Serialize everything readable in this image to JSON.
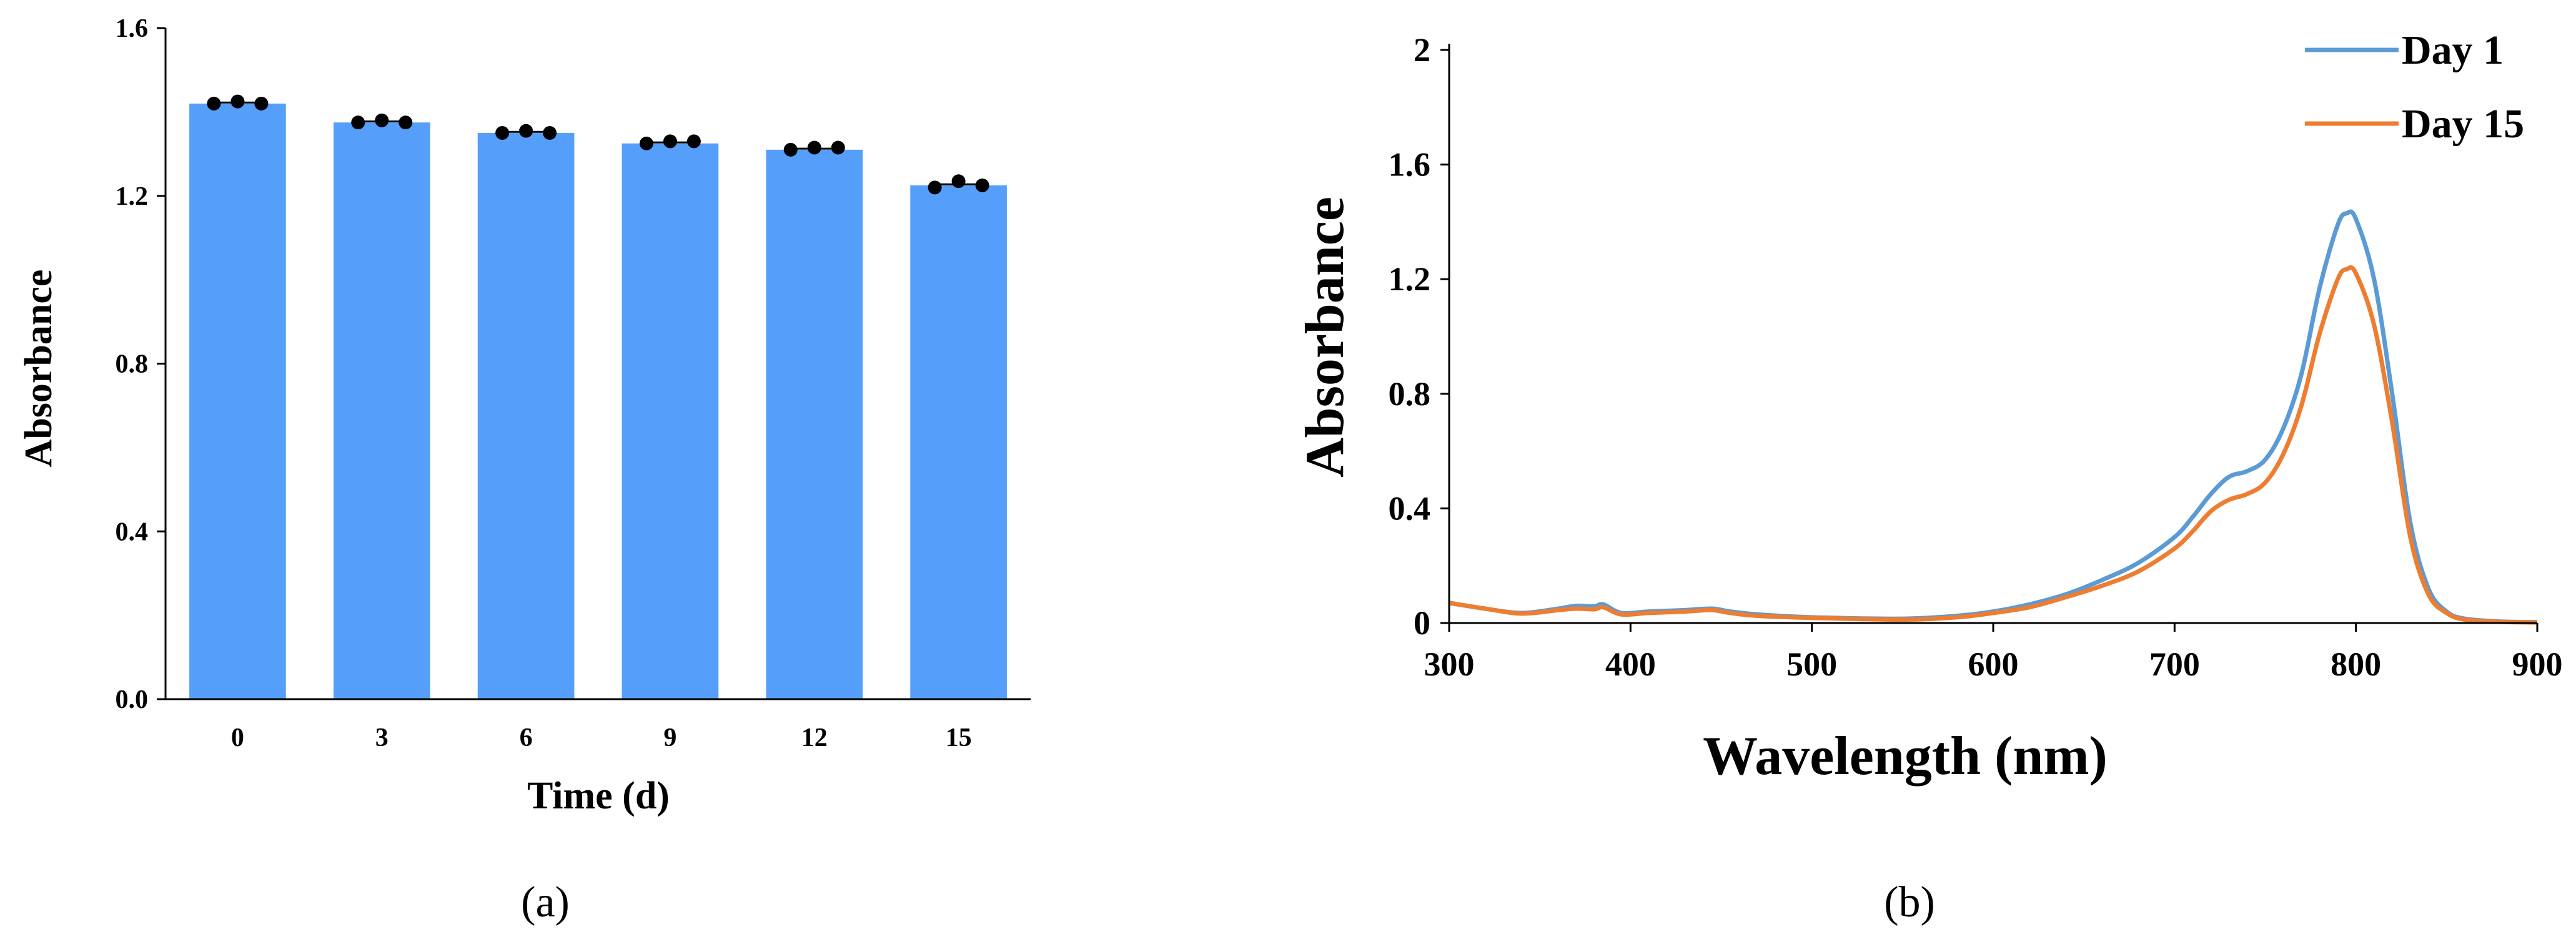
{
  "panels": {
    "a": {
      "label": "(a)"
    },
    "b": {
      "label": "(b)"
    }
  },
  "chart_data": [
    {
      "type": "bar",
      "title": "",
      "xlabel": "Time (d)",
      "ylabel": "Absorbance",
      "categories": [
        "0",
        "3",
        "6",
        "9",
        "12",
        "15"
      ],
      "values": [
        1.42,
        1.375,
        1.35,
        1.325,
        1.31,
        1.225
      ],
      "replicates": [
        [
          1.42,
          1.425,
          1.42
        ],
        [
          1.375,
          1.38,
          1.375
        ],
        [
          1.35,
          1.355,
          1.35
        ],
        [
          1.325,
          1.33,
          1.33
        ],
        [
          1.31,
          1.315,
          1.315
        ],
        [
          1.22,
          1.235,
          1.225
        ]
      ],
      "ylim": [
        0,
        1.6
      ],
      "yticks": [
        "0.0",
        "0.4",
        "0.8",
        "1.2",
        "1.6"
      ],
      "bar_color": "#559ffb",
      "point_color": "#000000",
      "grid": false,
      "legend": "none"
    },
    {
      "type": "line",
      "title": "",
      "xlabel": "Wavelength (nm)",
      "ylabel": "Absorbance",
      "xlim": [
        300,
        900
      ],
      "ylim": [
        0,
        2
      ],
      "xticks": [
        "300",
        "400",
        "500",
        "600",
        "700",
        "800",
        "900"
      ],
      "yticks": [
        "0",
        "0.4",
        "0.8",
        "1.2",
        "1.6",
        "2"
      ],
      "grid": false,
      "legend": "top-right",
      "series": [
        {
          "name": "Day 1",
          "color": "#5b9bd5",
          "x": [
            300,
            320,
            340,
            360,
            370,
            380,
            385,
            395,
            410,
            430,
            445,
            455,
            470,
            500,
            550,
            580,
            600,
            620,
            640,
            660,
            680,
            700,
            710,
            720,
            730,
            740,
            750,
            760,
            770,
            780,
            790,
            795,
            800,
            810,
            820,
            830,
            840,
            850,
            860,
            880,
            900
          ],
          "y": [
            0.07,
            0.05,
            0.035,
            0.05,
            0.06,
            0.058,
            0.065,
            0.035,
            0.04,
            0.045,
            0.05,
            0.04,
            0.03,
            0.02,
            0.015,
            0.025,
            0.04,
            0.065,
            0.1,
            0.15,
            0.21,
            0.3,
            0.37,
            0.45,
            0.51,
            0.53,
            0.57,
            0.68,
            0.87,
            1.17,
            1.39,
            1.43,
            1.41,
            1.2,
            0.8,
            0.35,
            0.12,
            0.04,
            0.015,
            0.005,
            0.003
          ]
        },
        {
          "name": "Day 15",
          "color": "#ed7d31",
          "x": [
            300,
            320,
            340,
            360,
            370,
            380,
            385,
            395,
            410,
            430,
            445,
            455,
            470,
            500,
            550,
            580,
            600,
            620,
            640,
            660,
            680,
            700,
            710,
            720,
            730,
            740,
            750,
            760,
            770,
            780,
            790,
            795,
            800,
            810,
            820,
            830,
            840,
            850,
            860,
            880,
            900
          ],
          "y": [
            0.07,
            0.05,
            0.033,
            0.045,
            0.05,
            0.048,
            0.055,
            0.03,
            0.035,
            0.04,
            0.045,
            0.035,
            0.025,
            0.018,
            0.012,
            0.02,
            0.035,
            0.055,
            0.09,
            0.13,
            0.18,
            0.26,
            0.32,
            0.39,
            0.43,
            0.45,
            0.49,
            0.59,
            0.76,
            1.01,
            1.2,
            1.235,
            1.22,
            1.04,
            0.7,
            0.3,
            0.1,
            0.035,
            0.012,
            0.004,
            0.002
          ]
        }
      ]
    }
  ]
}
